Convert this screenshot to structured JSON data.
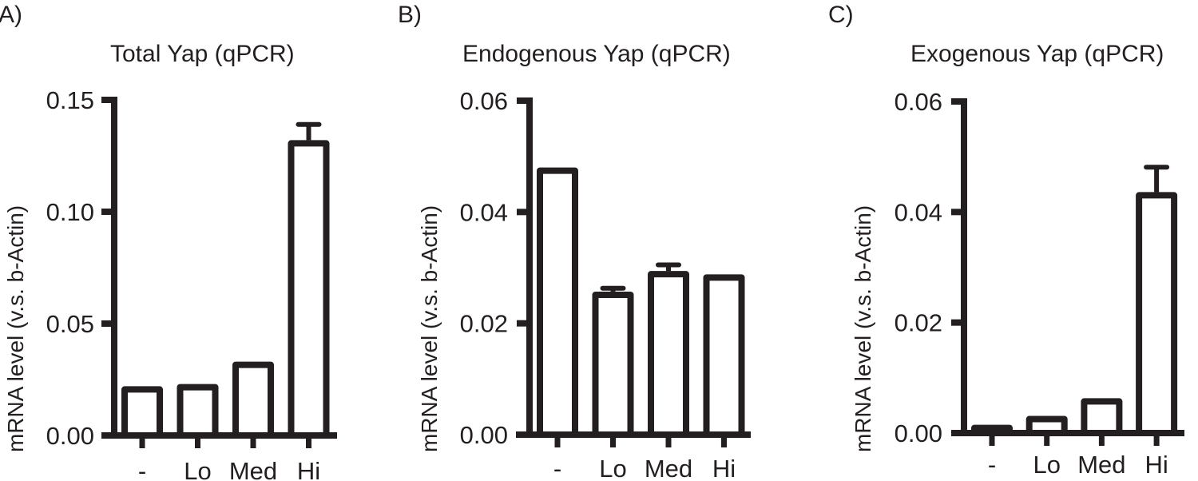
{
  "panels": [
    {
      "label": "A)",
      "title": "Total Yap (qPCR)",
      "ylabel": "mRNA level (v.s. b-Actin)"
    },
    {
      "label": "B)",
      "title": "Endogenous Yap (qPCR)",
      "ylabel": "mRNA level (v.s. b-Actin)"
    },
    {
      "label": "C)",
      "title": "Exogenous Yap (qPCR)",
      "ylabel": "mRNA level (v.s. b-Actin)"
    }
  ],
  "colors": {
    "ink": "#231f20",
    "bar_fill": "#ffffff",
    "background": "#ffffff"
  },
  "chart_data": [
    {
      "type": "bar",
      "title": "Total Yap (qPCR)",
      "panel": "A)",
      "xlabel": "",
      "ylabel": "mRNA level (v.s. b-Actin)",
      "categories": [
        "-",
        "Lo",
        "Med",
        "Hi"
      ],
      "values": [
        0.022,
        0.023,
        0.033,
        0.132
      ],
      "error_upper": [
        0.0225,
        0.024,
        0.033,
        0.139
      ],
      "ylim": [
        0,
        0.15
      ],
      "yticks": [
        "0.00",
        "0.05",
        "0.10",
        "0.15"
      ],
      "ytick_values": [
        0,
        0.05,
        0.1,
        0.15
      ],
      "grid": false,
      "legend": null
    },
    {
      "type": "bar",
      "title": "Endogenous Yap (qPCR)",
      "panel": "B)",
      "xlabel": "",
      "ylabel": "mRNA level (v.s. b-Actin)",
      "categories": [
        "-",
        "Lo",
        "Med",
        "Hi"
      ],
      "values": [
        0.048,
        0.0257,
        0.0294,
        0.0288
      ],
      "error_upper": [
        0.048,
        0.0263,
        0.0305,
        0.0289
      ],
      "ylim": [
        0,
        0.06
      ],
      "yticks": [
        "0.00",
        "0.02",
        "0.04",
        "0.06"
      ],
      "ytick_values": [
        0,
        0.02,
        0.04,
        0.06
      ],
      "grid": false,
      "legend": null
    },
    {
      "type": "bar",
      "title": "Exogenous Yap (qPCR)",
      "panel": "C)",
      "xlabel": "",
      "ylabel": "mRNA level (v.s. b-Actin)",
      "categories": [
        "-",
        "Lo",
        "Med",
        "Hi"
      ],
      "values": [
        0.0015,
        0.0031,
        0.0063,
        0.0436
      ],
      "error_upper": [
        0.0015,
        0.0031,
        0.0063,
        0.0481
      ],
      "ylim": [
        0,
        0.06
      ],
      "yticks": [
        "0.00",
        "0.02",
        "0.04",
        "0.06"
      ],
      "ytick_values": [
        0,
        0.02,
        0.04,
        0.06
      ],
      "grid": false,
      "legend": null
    }
  ]
}
